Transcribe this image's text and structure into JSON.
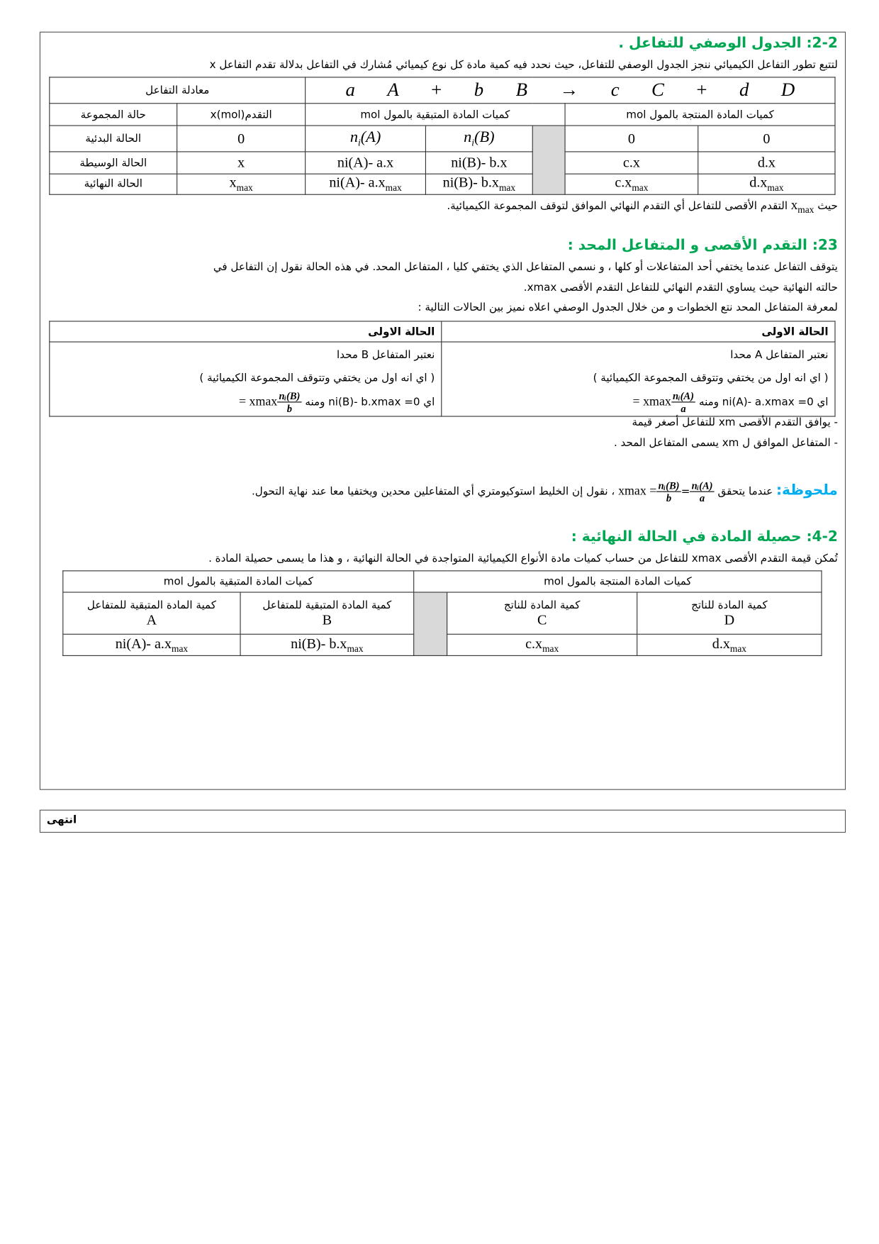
{
  "section22": {
    "heading": "2-2: الجدول الوصفي للتفاعل .",
    "intro": "لتتبع تطور التفاعل الكيميائي ننجز الجدول الوصفي للتفاعل، حيث نحدد فيه كمية مادة كل نوع كيميائي مُشارك في التفاعل بدلالة تقدم التفاعل x",
    "table": {
      "equation_label": "معادلة التفاعل",
      "equation": [
        "a",
        "A",
        "+",
        "b",
        "B",
        "→",
        "c",
        "C",
        "+",
        "d",
        "D"
      ],
      "headers": {
        "state": "حالة المجموعة",
        "advance": "التقدمx(mol)",
        "reactants": "كميات  المادة المتبقية بالمول  mol",
        "products": "كميات  المادة المنتجة بالمول  mol"
      },
      "rows": [
        {
          "state": "الحالة البدئية",
          "x": "0",
          "A": "n",
          "A_sub": "i",
          "A_arg": "(A)",
          "B": "n",
          "B_sub": "i",
          "B_arg": "(B)",
          "C": "0",
          "D": "0"
        },
        {
          "state": "الحالة الوسيطة",
          "x": "x",
          "A": "ni(A)- a.x",
          "B": "ni(B)- b.x",
          "C": "c.x",
          "D": "d.x"
        },
        {
          "state": "الحالة النهائية",
          "x": "x",
          "x_sub": "max",
          "A": "ni(A)- a.x",
          "A_sub": "max",
          "B": "ni(B)- b.x",
          "B_sub": "max",
          "C": "c.x",
          "C_sub": "max",
          "D": "d.x",
          "D_sub": "max"
        }
      ]
    },
    "footnote_pre": "حيث",
    "footnote_var": "x",
    "footnote_sub": "max",
    "footnote_post": "التقدم الأقصى للتفاعل أي التقدم النهائي الموافق لتوقف المجموعة الكيميائية."
  },
  "section23": {
    "heading": "23: التقدم الأقصى و المتفاعل المحد :",
    "para1": "يتوقف التفاعل عندما يختفي أحد المتفاعلات أو كلها ، و نسمي المتفاعل الذي يختفي كليا ، المتفاعل المحد. في هذه الحالة نقول إن التفاعل في",
    "para2": "حالته النهائية حيث يساوي التقدم النهائي للتفاعل التقدم الأقصى xmax.",
    "para3": "لمعرفة المتفاعل المحد نتع الخطوات  و من خلال الجدول الوصفي اعلاه  نميز بين الحالات التالية :",
    "cases": [
      {
        "title": "الحالة الاولى",
        "line1": "نعتبر المتفاعل A محدا",
        "line2": "( اي انه اول من يختفي وتتوقف المجموعة الكيميائية )",
        "eq": "اي ni(A)- a.xmax =0  ومنه",
        "xmax": "xmax =",
        "num": "nᵢ(A)",
        "den": "a"
      },
      {
        "title": "الحالة الاولى",
        "line1": "نعتبر المتفاعل B محدا",
        "line2": "( اي انه اول من يختفي وتتوقف المجموعة الكيميائية )",
        "eq": "اي ni(B)- b.xmax =0  ومنه",
        "xmax": "xmax =",
        "num": "nᵢ(B)",
        "den": "b"
      }
    ],
    "bullet1": "- يوافق التقدم الأقصى xm للتفاعل أصغر قيمة",
    "bullet2": "- المتفاعل الموافق ل xm يسمى المتفاعل المحد ."
  },
  "remark": {
    "label": "ملحوظة:",
    "pre": "عندما يتحقق",
    "num1": "nᵢ(A)",
    "den1": "a",
    "num2": "nᵢ(B)",
    "den2": "b",
    "xmax": "xmax =",
    "post": "، نقول إن الخليط استوكيومتري أي المتفاعلين محدين ويختفيا معا عند نهاية التحول."
  },
  "section42": {
    "heading": "4-2: حصيلة المادة في الحالة النهائية :",
    "intro": "تُمكن قيمة التقدم الأقصى xmax للتفاعل من حساب كميات مادة الأنواع الكيميائية المتواجدة في الحالة النهائية ، و هذا ما يسمى حصيلة المادة .",
    "table": {
      "reactants": "كميات  المادة المتبقية بالمول  mol",
      "products": "كميات  المادة المنتجة بالمول  mol",
      "cols": [
        {
          "label": "كمية المادة المتبقية للمتفاعل",
          "species": "A",
          "value": "ni(A)- a.x",
          "sub": "max"
        },
        {
          "label": "كمية المادة المتبقية للمتفاعل",
          "species": "B",
          "value": "ni(B)- b.x",
          "sub": "max"
        },
        {
          "label": "كمية المادة للناتج",
          "species": "C",
          "value": "c.x",
          "sub": "max"
        },
        {
          "label": "كمية المادة للناتج",
          "species": "D",
          "value": "d.x",
          "sub": "max"
        }
      ]
    }
  },
  "footer": {
    "end": "انتهى"
  },
  "colors": {
    "heading": "#00a651",
    "remark": "#00aeef",
    "gray_cell": "#d9d9d9"
  }
}
